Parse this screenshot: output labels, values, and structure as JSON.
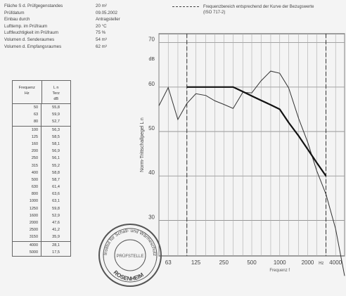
{
  "info": [
    {
      "label": "Fläche S d. Prüfgegenstandes",
      "value": "20 m²"
    },
    {
      "label": "Prüfdatum",
      "value": "09.05.2002"
    },
    {
      "label": "Einbau durch",
      "value": "Antragsteller"
    },
    {
      "label": "Lufttemp. im Prüfraum",
      "value": "20 °C"
    },
    {
      "label": "Luftfeuchtigkeit im Prüfraum",
      "value": "75 %"
    },
    {
      "label": "Volumen d. Senderaumes",
      "value": "54 m³"
    },
    {
      "label": "Volumen d. Empfangsraumes",
      "value": "62 m³"
    }
  ],
  "table": {
    "col1": "Frequenz",
    "col1_unit": "Hz",
    "col2": "L n",
    "col2_sub": "Terz",
    "col2_unit": "dB",
    "rows": [
      {
        "f": "50",
        "v": "55,8"
      },
      {
        "f": "63",
        "v": "59,9"
      },
      {
        "f": "80",
        "v": "52,7"
      },
      {
        "f": "100",
        "v": "56,3"
      },
      {
        "f": "125",
        "v": "58,5"
      },
      {
        "f": "160",
        "v": "58,1"
      },
      {
        "f": "200",
        "v": "56,9"
      },
      {
        "f": "250",
        "v": "56,1"
      },
      {
        "f": "315",
        "v": "55,2"
      },
      {
        "f": "400",
        "v": "58,8"
      },
      {
        "f": "500",
        "v": "58,7"
      },
      {
        "f": "630",
        "v": "61,4"
      },
      {
        "f": "800",
        "v": "63,6"
      },
      {
        "f": "1000",
        "v": "63,1"
      },
      {
        "f": "1250",
        "v": "59,8"
      },
      {
        "f": "1600",
        "v": "52,9"
      },
      {
        "f": "2000",
        "v": "47,6"
      },
      {
        "f": "2500",
        "v": "41,2"
      },
      {
        "f": "3150",
        "v": "35,9"
      },
      {
        "f": "4000",
        "v": "28,1"
      },
      {
        "f": "5000",
        "v": "17,5"
      }
    ]
  },
  "legend": "Frequenzbereich entsprechend der Kurve der Bezugswerte (ISO 717-2)",
  "chart_data": {
    "type": "line",
    "ylabel": "Norm-Trittschallpegel L n",
    "xlabel": "Frequenz f",
    "y_unit": "dB",
    "x_unit": "Hz",
    "x_ticks": [
      "63",
      "125",
      "250",
      "500",
      "1000",
      "2000",
      "4000"
    ],
    "y_ticks": [
      "30",
      "40",
      "50",
      "60",
      "70"
    ],
    "ylim": [
      22,
      72
    ],
    "series": [
      {
        "name": "measured",
        "x": [
          50,
          63,
          80,
          100,
          125,
          160,
          200,
          250,
          315,
          400,
          500,
          630,
          800,
          1000,
          1250,
          1600,
          2000,
          2500,
          3150,
          4000,
          5000
        ],
        "values": [
          55.8,
          59.9,
          52.7,
          56.3,
          58.5,
          58.1,
          56.9,
          56.1,
          55.2,
          58.8,
          58.7,
          61.4,
          63.6,
          63.1,
          59.8,
          52.9,
          47.6,
          41.2,
          35.9,
          28.1,
          17.5
        ]
      },
      {
        "name": "reference",
        "x": [
          100,
          125,
          160,
          200,
          250,
          315,
          400,
          500,
          630,
          800,
          1000,
          1250,
          1600,
          2000,
          2500,
          3150
        ],
        "values": [
          60,
          60,
          60,
          60,
          60,
          60,
          59,
          58,
          57,
          56,
          55,
          52,
          49,
          46,
          43,
          40
        ]
      }
    ],
    "range_lines_hz": [
      100,
      3150
    ]
  },
  "stamp": {
    "text_top": "Institut für Schall- und Wärmeschutz",
    "text_bottom": "ROSENHEIM",
    "center": "PRÜFSTELLE"
  }
}
